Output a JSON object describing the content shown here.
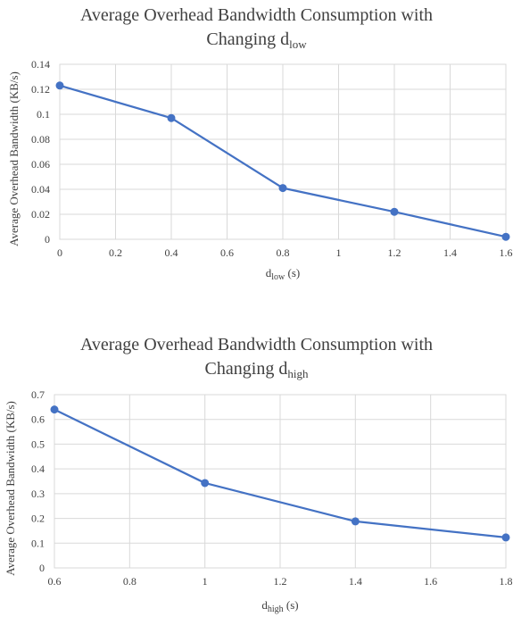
{
  "chart_data": [
    {
      "type": "line",
      "title_main": "Average Overhead Bandwidth Consumption with",
      "title_line2": "Changing d",
      "title_sub": "low",
      "xlabel_main": "d",
      "xlabel_sub": "low",
      "xlabel_unit": " (s)",
      "ylabel": "Average Overhead Bandwidth (KB/s)",
      "x": [
        0,
        0.4,
        0.8,
        1.2,
        1.6
      ],
      "values": [
        0.123,
        0.097,
        0.041,
        0.022,
        0.002
      ],
      "xlim": [
        0,
        1.6
      ],
      "ylim": [
        0,
        0.14
      ],
      "x_ticks": [
        "0",
        "0.2",
        "0.4",
        "0.6",
        "0.8",
        "1",
        "1.2",
        "1.4",
        "1.6"
      ],
      "y_ticks": [
        "0",
        "0.02",
        "0.04",
        "0.06",
        "0.08",
        "0.1",
        "0.12",
        "0.14"
      ],
      "grid": true,
      "color": "#4472C4"
    },
    {
      "type": "line",
      "title_main": "Average Overhead Bandwidth Consumption with",
      "title_line2": "Changing d",
      "title_sub": "high",
      "xlabel_main": "d",
      "xlabel_sub": "high",
      "xlabel_unit": " (s)",
      "ylabel": "Average Overhead Bandwidth (KB/s)",
      "x": [
        0.6,
        1.0,
        1.4,
        1.8
      ],
      "values": [
        0.64,
        0.343,
        0.188,
        0.123
      ],
      "xlim": [
        0.6,
        1.8
      ],
      "ylim": [
        0,
        0.7
      ],
      "x_ticks": [
        "0.6",
        "0.8",
        "1",
        "1.2",
        "1.4",
        "1.6",
        "1.8"
      ],
      "y_ticks": [
        "0",
        "0.1",
        "0.2",
        "0.3",
        "0.4",
        "0.5",
        "0.6",
        "0.7"
      ],
      "grid": true,
      "color": "#4472C4"
    }
  ]
}
